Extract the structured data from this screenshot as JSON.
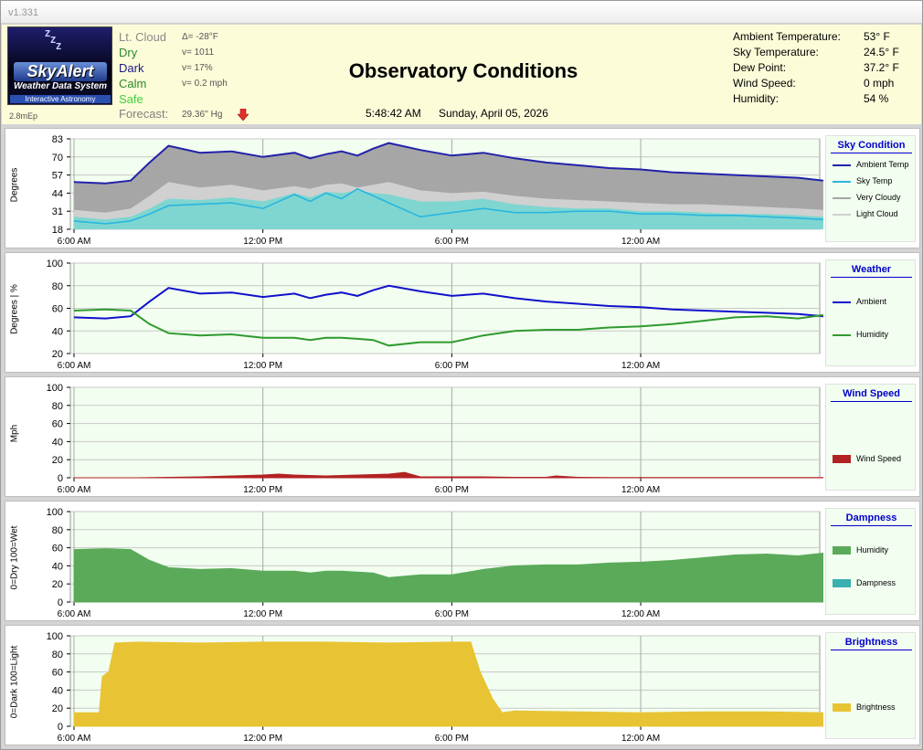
{
  "app": {
    "version": "v1.331"
  },
  "logo": {
    "brand": "SkyAlert",
    "subtitle": "Weather Data System",
    "tagline": "Interactive Astronomy",
    "zz": "Z\n Z\n  Z"
  },
  "mep": "2.8mEp",
  "status": {
    "items": [
      {
        "label": "Lt. Cloud",
        "color": "#8a8a8a",
        "value": "Δ= -28°F"
      },
      {
        "label": "Dry",
        "color": "#2a8a2a",
        "value": "v= 1011"
      },
      {
        "label": "Dark",
        "color": "#1a1a8a",
        "value": "v= 17%"
      },
      {
        "label": "Calm",
        "color": "#2a8a2a",
        "value": "v= 0.2 mph"
      },
      {
        "label": "Safe",
        "color": "#3fcf3f",
        "value": ""
      }
    ],
    "forecast_label": "Forecast:",
    "forecast_value": "29.36'' Hg",
    "forecast_icon": "down-arrow-icon"
  },
  "header": {
    "title": "Observatory Conditions",
    "time": "5:48:42 AM",
    "date": "Sunday, April 05, 2026"
  },
  "readings": [
    {
      "label": "Ambient Temperature:",
      "value": "53° F"
    },
    {
      "label": "Sky Temperature:",
      "value": "24.5° F"
    },
    {
      "label": "Dew Point:",
      "value": "37.2° F"
    },
    {
      "label": "Wind Speed:",
      "value": "0 mph"
    },
    {
      "label": "Humidity:",
      "value": "54 %"
    }
  ],
  "time_ticks": [
    "6:00 AM",
    "12:00 PM",
    "6:00 PM",
    "12:00 AM"
  ],
  "chart_data": [
    {
      "type": "line",
      "title": "Sky Condition",
      "ylabel": "Degrees",
      "yticks": [
        18,
        31,
        44,
        57,
        70,
        83
      ],
      "ylim": [
        18,
        83
      ],
      "x_hours": [
        0,
        1,
        1.8,
        2.4,
        3,
        4,
        5,
        6,
        7,
        7.5,
        8,
        8.5,
        9,
        9.5,
        10,
        11,
        12,
        13,
        14,
        15,
        16,
        17,
        18,
        19,
        20,
        21,
        22,
        23,
        23.8
      ],
      "series": [
        {
          "name": "Ambient Temp",
          "color": "#2222aa",
          "values": [
            52,
            51,
            53,
            66,
            78,
            73,
            74,
            70,
            73,
            69,
            72,
            74,
            71,
            76,
            80,
            75,
            71,
            73,
            69,
            66,
            64,
            62,
            61,
            59,
            58,
            57,
            56,
            55,
            53
          ]
        },
        {
          "name": "Sky Temp",
          "color": "#29b6e0",
          "values": [
            24,
            22,
            24,
            29,
            35,
            36,
            37,
            33,
            43,
            38,
            44,
            40,
            47,
            42,
            37,
            27,
            30,
            33,
            30,
            30,
            31,
            31,
            29,
            29,
            28,
            28,
            27,
            26,
            25
          ]
        },
        {
          "name": "Very Cloudy",
          "color": "#a6a6a6",
          "values": [
            32,
            30,
            33,
            42,
            52,
            48,
            50,
            46,
            49,
            47,
            50,
            51,
            48,
            50,
            52,
            46,
            44,
            45,
            42,
            40,
            39,
            38,
            37,
            36,
            36,
            35,
            34,
            33,
            32
          ]
        },
        {
          "name": "Light Cloud",
          "color": "#d0d0d0",
          "values": [
            27,
            25,
            27,
            33,
            40,
            39,
            41,
            38,
            44,
            41,
            45,
            44,
            46,
            44,
            43,
            38,
            38,
            40,
            36,
            34,
            33,
            33,
            31,
            31,
            30,
            29,
            29,
            28,
            27
          ]
        }
      ]
    },
    {
      "type": "line",
      "title": "Weather",
      "ylabel": "Degrees | %",
      "yticks": [
        20,
        40,
        60,
        80,
        100
      ],
      "ylim": [
        20,
        100
      ],
      "x_hours": [
        0,
        1,
        1.8,
        2.4,
        3,
        4,
        5,
        6,
        7,
        7.5,
        8,
        8.5,
        9,
        9.5,
        10,
        11,
        12,
        13,
        14,
        15,
        16,
        17,
        18,
        19,
        20,
        21,
        22,
        23,
        23.8
      ],
      "series": [
        {
          "name": "Ambient",
          "color": "#1010cc",
          "values": [
            52,
            51,
            53,
            66,
            78,
            73,
            74,
            70,
            73,
            69,
            72,
            74,
            71,
            76,
            80,
            75,
            71,
            73,
            69,
            66,
            64,
            62,
            61,
            59,
            58,
            57,
            56,
            55,
            53
          ]
        },
        {
          "name": "Humidity",
          "color": "#2f9a2f",
          "values": [
            58,
            59,
            58,
            46,
            38,
            36,
            37,
            34,
            34,
            32,
            34,
            34,
            33,
            32,
            27,
            30,
            30,
            36,
            40,
            41,
            41,
            43,
            44,
            46,
            49,
            52,
            53,
            51,
            54
          ]
        }
      ]
    },
    {
      "type": "area",
      "title": "Wind Speed",
      "ylabel": "Mph",
      "yticks": [
        0,
        20,
        40,
        60,
        80,
        100
      ],
      "ylim": [
        0,
        100
      ],
      "x_hours": [
        0,
        1,
        2,
        3,
        4,
        5,
        6,
        6.5,
        7,
        8,
        9,
        10,
        10.5,
        11,
        12,
        13,
        14,
        15,
        15.3,
        16,
        17,
        18,
        19,
        20,
        21,
        22,
        23,
        23.8
      ],
      "series": [
        {
          "name": "Wind Speed",
          "color": "#b22222",
          "values": [
            0,
            0,
            0,
            0.5,
            1,
            2,
            3,
            4,
            3,
            2,
            3,
            4,
            6,
            1,
            1,
            1,
            0.5,
            0.5,
            2,
            0.5,
            0.3,
            0.3,
            0.2,
            0.2,
            0.2,
            0.2,
            0.2,
            0.2
          ]
        }
      ]
    },
    {
      "type": "area",
      "title": "Dampness",
      "ylabel": "0=Dry 100=Wet",
      "yticks": [
        0,
        20,
        40,
        60,
        80,
        100
      ],
      "ylim": [
        0,
        100
      ],
      "x_hours": [
        0,
        1,
        1.8,
        2.4,
        3,
        4,
        5,
        6,
        7,
        7.5,
        8,
        8.5,
        9,
        9.5,
        10,
        11,
        12,
        13,
        14,
        15,
        16,
        17,
        18,
        19,
        20,
        21,
        22,
        23,
        23.8
      ],
      "series": [
        {
          "name": "Humidity",
          "color": "#5aaa5a",
          "values": [
            58,
            59,
            58,
            46,
            38,
            36,
            37,
            34,
            34,
            32,
            34,
            34,
            33,
            32,
            27,
            30,
            30,
            36,
            40,
            41,
            41,
            43,
            44,
            46,
            49,
            52,
            53,
            51,
            54
          ]
        },
        {
          "name": "Dampness",
          "color": "#3ab0b0",
          "values": []
        }
      ]
    },
    {
      "type": "area",
      "title": "Brightness",
      "ylabel": "0=Dark 100=Light",
      "yticks": [
        0,
        20,
        40,
        60,
        80,
        100
      ],
      "ylim": [
        0,
        100
      ],
      "x_hours": [
        0,
        0.8,
        0.9,
        1.1,
        1.3,
        2,
        4,
        6,
        8,
        10,
        12,
        12.6,
        12.9,
        13.3,
        13.6,
        14,
        16,
        18,
        20,
        22,
        23.8
      ],
      "series": [
        {
          "name": "Brightness",
          "color": "#e8c435",
          "values": [
            15,
            15,
            55,
            60,
            92,
            93,
            92,
            93,
            93,
            92,
            93,
            93,
            60,
            30,
            15,
            17,
            16,
            15,
            16,
            16,
            15
          ]
        }
      ]
    }
  ]
}
